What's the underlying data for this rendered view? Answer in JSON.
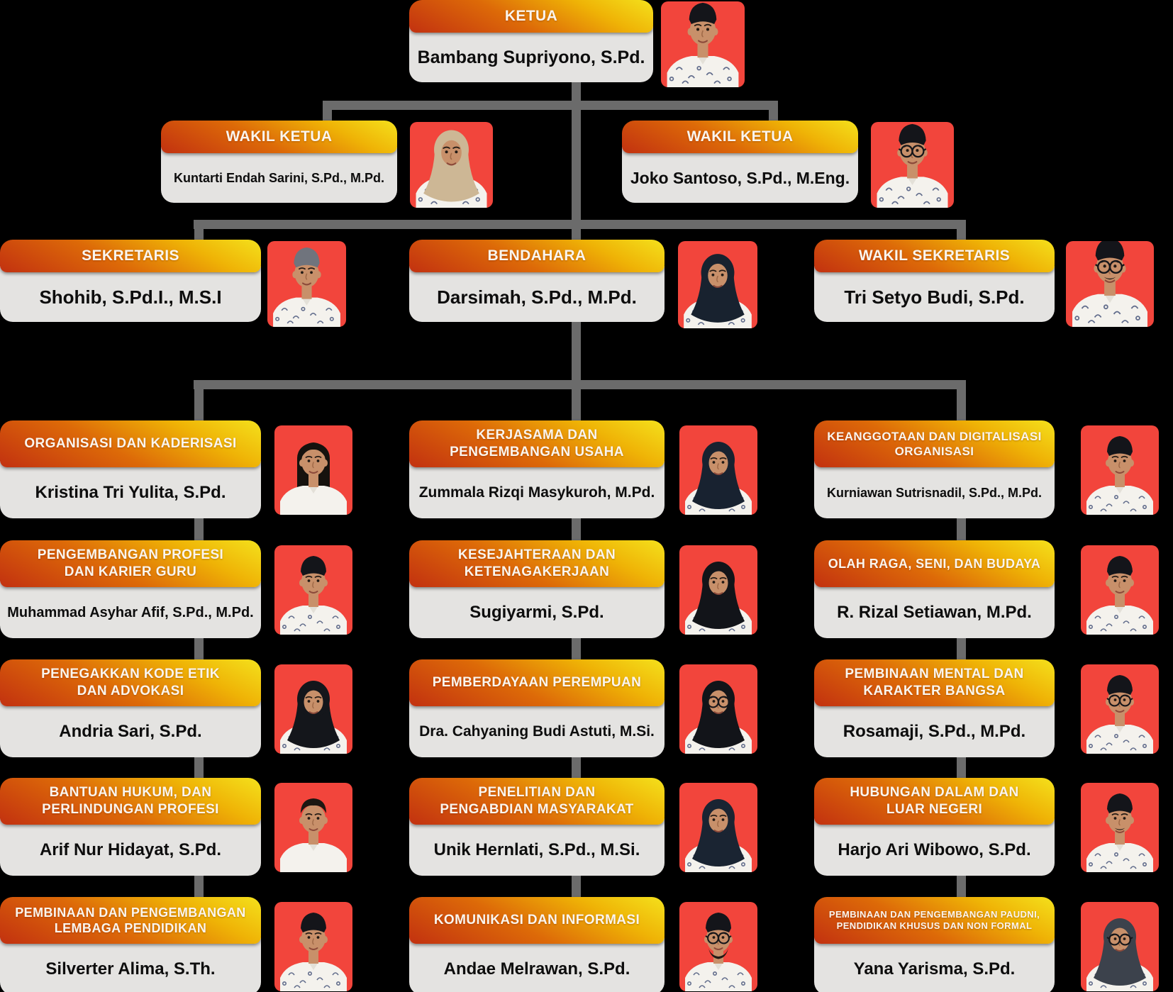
{
  "colors": {
    "background": "#000000",
    "connector": "#6b6b6b",
    "card_body": "#e4e3e1",
    "title_text": "#faf5ee",
    "name_text": "#0d0d0d",
    "photo_bg": "#f2453c",
    "grad_a": "#c23110",
    "grad_b": "#dd6a08",
    "grad_c": "#efb306",
    "grad_d": "#f4e11c"
  },
  "chart": {
    "ketua": {
      "title": "KETUA",
      "name": "Bambang Supriyono, S.Pd.",
      "avatar": {
        "type": "m",
        "headwear": "peci"
      }
    },
    "wakil_ketua": [
      {
        "title": "WAKIL KETUA",
        "name": "Kuntarti Endah Sarini, S.Pd., M.Pd.",
        "avatar": {
          "type": "f",
          "headwear": "hijab",
          "hijab_color": "#cdb795"
        }
      },
      {
        "title": "WAKIL KETUA",
        "name": "Joko Santoso, S.Pd., M.Eng.",
        "avatar": {
          "type": "m",
          "headwear": "peci",
          "glasses": true
        }
      }
    ],
    "row3": [
      {
        "title": "SEKRETARIS",
        "name": "Shohib, S.Pd.I., M.S.I",
        "avatar": {
          "type": "m",
          "headwear": "kopiah"
        }
      },
      {
        "title": "BENDAHARA",
        "name": "Darsimah, S.Pd., M.Pd.",
        "avatar": {
          "type": "f",
          "headwear": "hijab",
          "hijab_color": "#18222f"
        }
      },
      {
        "title": "WAKIL SEKRETARIS",
        "name": "Tri Setyo Budi, S.Pd.",
        "avatar": {
          "type": "m",
          "headwear": "peci",
          "glasses": true,
          "mustache": true
        }
      }
    ],
    "columns": [
      [
        {
          "title": "ORGANISASI DAN KADERISASI",
          "name": "Kristina Tri Yulita, S.Pd.",
          "avatar": {
            "type": "f",
            "headwear": "hair",
            "plain": true
          }
        },
        {
          "title": "PENGEMBANGAN PROFESI\nDAN KARIER GURU",
          "name": "Muhammad Asyhar Afif, S.Pd., M.Pd.",
          "avatar": {
            "type": "m",
            "headwear": "peci"
          }
        },
        {
          "title": "PENEGAKKAN KODE ETIK\nDAN ADVOKASI",
          "name": "Andria Sari, S.Pd.",
          "avatar": {
            "type": "f",
            "headwear": "hijab",
            "hijab_color": "#14161b"
          }
        },
        {
          "title": "BANTUAN HUKUM, DAN\nPERLINDUNGAN PROFESI",
          "name": "Arif Nur Hidayat, S.Pd.",
          "avatar": {
            "type": "m",
            "headwear": "hair",
            "plain": true
          }
        },
        {
          "title": "PEMBINAAN DAN PENGEMBANGAN\nLEMBAGA PENDIDIKAN",
          "name": "Silverter Alima, S.Th.",
          "avatar": {
            "type": "m",
            "headwear": "peci"
          }
        }
      ],
      [
        {
          "title": "KERJASAMA DAN\nPENGEMBANGAN USAHA",
          "name": "Zummala Rizqi Masykuroh, M.Pd.",
          "avatar": {
            "type": "f",
            "headwear": "hijab",
            "hijab_color": "#182230"
          }
        },
        {
          "title": "KESEJAHTERAAN DAN\nKETENAGAKERJAAN",
          "name": "Sugiyarmi, S.Pd.",
          "avatar": {
            "type": "f",
            "headwear": "hijab",
            "hijab_color": "#121419"
          }
        },
        {
          "title": "PEMBERDAYAAN PEREMPUAN",
          "name": "Dra. Cahyaning Budi Astuti, M.Si.",
          "avatar": {
            "type": "f",
            "headwear": "hijab",
            "hijab_color": "#121419",
            "glasses": true
          }
        },
        {
          "title": "PENELITIAN DAN\nPENGABDIAN MASYARAKAT",
          "name": "Unik Hernlati, S.Pd., M.Si.",
          "avatar": {
            "type": "f",
            "headwear": "hijab",
            "hijab_color": "#1a2432"
          }
        },
        {
          "title": "KOMUNIKASI DAN INFORMASI",
          "name": "Andae Melrawan, S.Pd.",
          "avatar": {
            "type": "m",
            "headwear": "peci",
            "glasses": true,
            "beard": true
          }
        }
      ],
      [
        {
          "title": "KEANGGOTAAN DAN DIGITALISASI\nORGANISASI",
          "name": "Kurniawan Sutrisnadil, S.Pd., M.Pd.",
          "avatar": {
            "type": "m",
            "headwear": "peci"
          }
        },
        {
          "title": "OLAH RAGA, SENI, DAN BUDAYA",
          "name": "R. Rizal Setiawan, M.Pd.",
          "avatar": {
            "type": "m",
            "headwear": "peci"
          }
        },
        {
          "title": "PEMBINAAN MENTAL DAN\nKARAKTER BANGSA",
          "name": "Rosamaji, S.Pd., M.Pd.",
          "avatar": {
            "type": "m",
            "headwear": "peci",
            "glasses": true
          }
        },
        {
          "title": "HUBUNGAN DALAM DAN\nLUAR NEGERI",
          "name": "Harjo Ari Wibowo, S.Pd.",
          "avatar": {
            "type": "m",
            "headwear": "peci",
            "mustache": true
          }
        },
        {
          "title": "PEMBINAAN DAN PENGEMBANGAN PAUDNI,\nPENDIDIKAN KHUSUS DAN NON FORMAL",
          "name": "Yana Yarisma, S.Pd.",
          "avatar": {
            "type": "f",
            "headwear": "hijab",
            "hijab_color": "#3c424c",
            "glasses": true
          }
        }
      ]
    ]
  }
}
